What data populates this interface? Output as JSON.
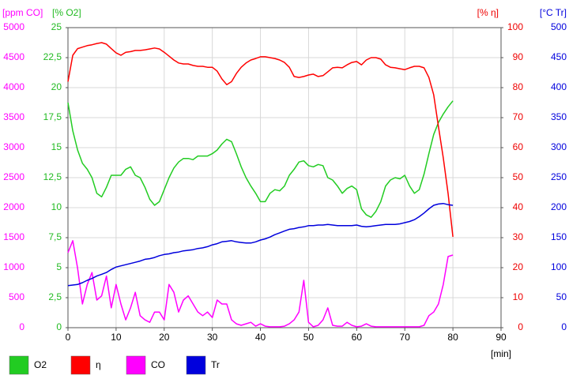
{
  "chart_data": {
    "type": "line",
    "xlabel": "[min]",
    "xlim": [
      0,
      90
    ],
    "xticks": [
      0,
      10,
      20,
      30,
      40,
      50,
      60,
      70,
      80,
      90
    ],
    "grid": true,
    "x": [
      0,
      1,
      2,
      3,
      4,
      5,
      6,
      7,
      8,
      9,
      10,
      11,
      12,
      13,
      14,
      15,
      16,
      17,
      18,
      19,
      20,
      21,
      22,
      23,
      24,
      25,
      26,
      27,
      28,
      29,
      30,
      31,
      32,
      33,
      34,
      35,
      36,
      37,
      38,
      39,
      40,
      41,
      42,
      43,
      44,
      45,
      46,
      47,
      48,
      49,
      50,
      51,
      52,
      53,
      54,
      55,
      56,
      57,
      58,
      59,
      60,
      61,
      62,
      63,
      64,
      65,
      66,
      67,
      68,
      69,
      70,
      71,
      72,
      73,
      74,
      75,
      76,
      77,
      78,
      79,
      80
    ],
    "y_axes": [
      {
        "id": "y",
        "title": "[ppm CO]",
        "color": "#ff00ff",
        "lim": [
          0,
          5000
        ],
        "ticks": [
          0,
          500,
          1000,
          1500,
          2000,
          2500,
          3000,
          3500,
          4000,
          4500,
          5000
        ]
      },
      {
        "id": "y2",
        "title": "[% O2]",
        "color": "#22bb22",
        "lim": [
          0,
          25
        ],
        "ticks": [
          0,
          {
            "value": 2.5,
            "label": "2,5"
          },
          5,
          {
            "value": 7.5,
            "label": "7,5"
          },
          10,
          {
            "value": 12.5,
            "label": "12,5"
          },
          15,
          {
            "value": 17.5,
            "label": "17,5"
          },
          20,
          {
            "value": 22.5,
            "label": "22,5"
          },
          25
        ]
      },
      {
        "id": "y3",
        "title": "[% η]",
        "color": "#ee0000",
        "lim": [
          0,
          100
        ],
        "ticks": [
          0,
          10,
          20,
          30,
          40,
          50,
          60,
          70,
          80,
          90,
          100
        ]
      },
      {
        "id": "y4",
        "title": "[°C Tr]",
        "color": "#0000dd",
        "lim": [
          0,
          500
        ],
        "ticks": [
          0,
          50,
          100,
          150,
          200,
          250,
          300,
          350,
          400,
          450,
          500
        ]
      }
    ],
    "series": [
      {
        "name": "O2",
        "color": "#22cc22",
        "axis": "y2",
        "values": [
          18.75,
          16.4,
          14.8,
          13.7,
          13.2,
          12.5,
          11.2,
          10.9,
          11.7,
          12.7,
          12.7,
          12.7,
          13.2,
          13.4,
          12.7,
          12.5,
          11.7,
          10.7,
          10.2,
          10.5,
          11.5,
          12.5,
          13.3,
          13.8,
          14.1,
          14.1,
          14,
          14.3,
          14.3,
          14.3,
          14.5,
          14.8,
          15.3,
          15.7,
          15.5,
          14.5,
          13.4,
          12.5,
          11.8,
          11.2,
          10.5,
          10.5,
          11.2,
          11.5,
          11.4,
          11.8,
          12.7,
          13.2,
          13.8,
          13.9,
          13.5,
          13.4,
          13.6,
          13.5,
          12.5,
          12.3,
          11.8,
          11.2,
          11.6,
          11.8,
          11.5,
          9.9,
          9.4,
          9.2,
          9.7,
          10.5,
          11.8,
          12.3,
          12.5,
          12.4,
          12.7,
          11.8,
          11.2,
          11.5,
          12.8,
          14.5,
          16.1,
          17.1,
          17.8,
          18.4,
          18.9
        ]
      },
      {
        "name": "η",
        "color": "#ff0000",
        "axis": "y3",
        "values": [
          82,
          90.8,
          93,
          93.5,
          94,
          94.3,
          94.7,
          95,
          94.5,
          93,
          91.6,
          90.8,
          91.8,
          92,
          92.4,
          92.4,
          92.6,
          92.9,
          93.2,
          92.9,
          91.8,
          90.5,
          89.2,
          88.2,
          87.9,
          87.9,
          87.4,
          87.1,
          87.1,
          86.8,
          86.8,
          85.5,
          82.9,
          81,
          82,
          84.7,
          86.8,
          88.2,
          89.2,
          89.7,
          90.3,
          90.3,
          90,
          89.7,
          89.2,
          88.4,
          86.8,
          83.7,
          83.4,
          83.7,
          84.2,
          84.5,
          83.7,
          84,
          85.3,
          86.6,
          86.8,
          86.6,
          87.6,
          88.4,
          88.7,
          87.6,
          89.2,
          90,
          90,
          89.5,
          87.6,
          86.8,
          86.6,
          86.3,
          86,
          86.6,
          87.1,
          87.1,
          86.6,
          83.4,
          77.6,
          67,
          56.6,
          44.7,
          30.3
        ]
      },
      {
        "name": "CO",
        "color": "#ff00ff",
        "axis": "y",
        "values": [
          1250,
          1450,
          990,
          395,
          720,
          920,
          460,
          530,
          860,
          330,
          720,
          395,
          130,
          330,
          590,
          200,
          130,
          90,
          260,
          260,
          130,
          720,
          590,
          260,
          460,
          530,
          395,
          260,
          200,
          260,
          170,
          460,
          395,
          395,
          130,
          65,
          40,
          65,
          90,
          25,
          65,
          25,
          15,
          15,
          15,
          25,
          65,
          130,
          260,
          790,
          90,
          15,
          40,
          130,
          330,
          40,
          25,
          25,
          90,
          40,
          15,
          25,
          65,
          25,
          15,
          15,
          15,
          15,
          15,
          15,
          15,
          15,
          15,
          15,
          40,
          200,
          260,
          395,
          720,
          1185,
          1210
        ]
      },
      {
        "name": "Tr",
        "color": "#0000dd",
        "axis": "y4",
        "values": [
          70,
          71,
          72,
          75,
          79,
          82,
          86,
          89,
          92,
          97,
          101,
          103,
          105,
          107,
          109,
          111,
          114,
          115,
          117,
          120,
          122,
          123,
          125,
          126,
          128,
          129,
          130,
          132,
          133,
          135,
          138,
          140,
          143,
          144,
          145,
          143,
          142,
          141,
          141,
          143,
          146,
          148,
          151,
          155,
          158,
          161,
          164,
          165,
          167,
          168,
          170,
          170,
          171,
          171,
          172,
          171,
          170,
          170,
          170,
          170,
          171,
          169,
          168,
          169,
          170,
          171,
          172,
          172,
          172,
          173,
          175,
          177,
          180,
          185,
          191,
          198,
          204,
          206,
          207,
          205,
          204
        ]
      }
    ],
    "legend": "bottom"
  }
}
